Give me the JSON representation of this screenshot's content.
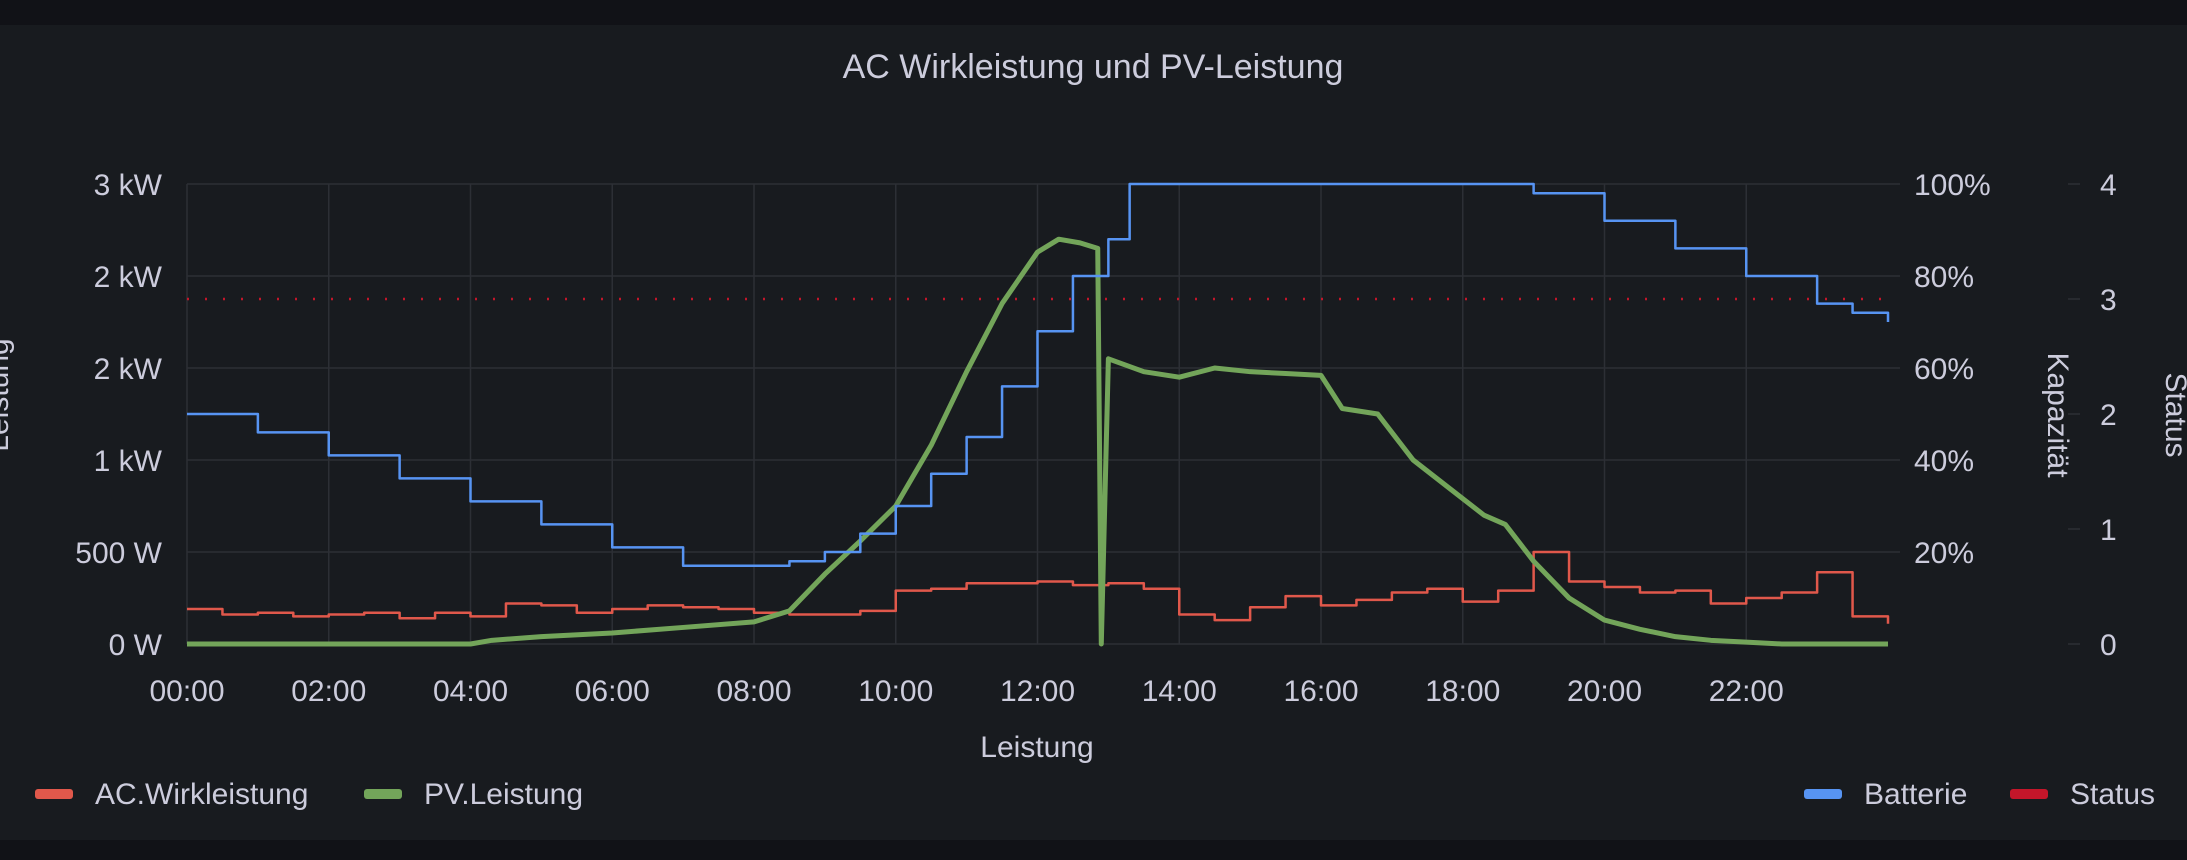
{
  "panel": {
    "title": "AC Wirkleistung und PV-Leistung"
  },
  "chart_data": {
    "type": "line",
    "title": "AC Wirkleistung und PV-Leistung",
    "xlabel": "Leistung",
    "x_ticks": [
      "00:00",
      "02:00",
      "04:00",
      "06:00",
      "08:00",
      "10:00",
      "12:00",
      "14:00",
      "16:00",
      "18:00",
      "20:00",
      "22:00"
    ],
    "xlim_hours": [
      0,
      24
    ],
    "axes": {
      "left": {
        "label": "Leistung",
        "ticks": [
          "0 W",
          "500 W",
          "1 kW",
          "2 kW",
          "2 kW",
          "3 kW"
        ],
        "range_w": [
          0,
          2500
        ]
      },
      "right_capacity": {
        "label": "Kapazität",
        "ticks": [
          "20%",
          "40%",
          "60%",
          "80%",
          "100%"
        ],
        "range_pct": [
          0,
          100
        ]
      },
      "right_status": {
        "label": "Status",
        "ticks": [
          "0",
          "1",
          "2",
          "3",
          "4"
        ],
        "range": [
          0,
          4
        ]
      }
    },
    "grid": true,
    "legend": {
      "left": [
        "AC.Wirkleistung",
        "PV.Leistung"
      ],
      "right": [
        "Batterie",
        "Status"
      ]
    },
    "colors": {
      "ac": "#e0584b",
      "pv": "#73a55a",
      "battery": "#5794f2",
      "status": "#c4162a"
    },
    "series": [
      {
        "name": "AC.Wirkleistung",
        "axis": "left",
        "x": [
          0,
          0.5,
          1,
          1.5,
          2,
          2.5,
          3,
          3.5,
          4,
          4.5,
          5,
          5.5,
          6,
          6.5,
          7,
          7.5,
          8,
          8.5,
          9,
          9.5,
          10,
          10.5,
          11,
          11.5,
          12,
          12.5,
          13,
          13.5,
          14,
          14.5,
          15,
          15.5,
          16,
          16.5,
          17,
          17.5,
          18,
          18.5,
          19,
          19.5,
          20,
          20.5,
          21,
          21.5,
          22,
          22.5,
          23,
          23.5,
          24
        ],
        "y": [
          190,
          160,
          170,
          150,
          160,
          170,
          140,
          170,
          150,
          220,
          210,
          170,
          190,
          210,
          200,
          190,
          170,
          160,
          160,
          180,
          290,
          300,
          330,
          330,
          340,
          320,
          330,
          300,
          160,
          130,
          200,
          260,
          210,
          240,
          280,
          300,
          230,
          290,
          500,
          340,
          310,
          280,
          290,
          220,
          250,
          280,
          390,
          150,
          110
        ]
      },
      {
        "name": "PV.Leistung",
        "axis": "left",
        "x": [
          0,
          1,
          2,
          3,
          4,
          4.3,
          5,
          6,
          7,
          8,
          8.5,
          9,
          9.5,
          10,
          10.5,
          11,
          11.5,
          12,
          12.3,
          12.6,
          12.85,
          12.9,
          13,
          13.5,
          14,
          14.5,
          15,
          15.5,
          16,
          16.3,
          16.8,
          17.3,
          17.8,
          18.3,
          18.6,
          19,
          19.5,
          20,
          20.5,
          21,
          21.5,
          22,
          22.5,
          23,
          24
        ],
        "y": [
          0,
          0,
          0,
          0,
          0,
          20,
          40,
          60,
          90,
          120,
          180,
          380,
          560,
          750,
          1080,
          1480,
          1850,
          2130,
          2200,
          2180,
          2150,
          0,
          1550,
          1480,
          1450,
          1500,
          1480,
          1470,
          1460,
          1280,
          1250,
          1000,
          850,
          700,
          650,
          450,
          250,
          130,
          80,
          40,
          20,
          10,
          0,
          0,
          0
        ]
      },
      {
        "name": "Batterie",
        "axis": "right_capacity",
        "x": [
          0,
          1,
          2,
          3,
          4,
          5,
          6,
          7,
          8,
          8.5,
          9,
          9.5,
          10,
          10.5,
          11,
          11.5,
          12,
          12.5,
          13,
          13.3,
          14,
          16,
          18,
          18.5,
          19,
          20,
          21,
          22,
          23,
          23.5,
          24
        ],
        "y": [
          50,
          46,
          41,
          36,
          31,
          26,
          21,
          17,
          17,
          18,
          20,
          24,
          30,
          37,
          45,
          56,
          68,
          80,
          88,
          100,
          100,
          100,
          100,
          100,
          98,
          92,
          86,
          80,
          74,
          72,
          70
        ]
      },
      {
        "name": "Status",
        "axis": "right_status",
        "x": [
          0,
          24
        ],
        "y": [
          3,
          3
        ]
      }
    ]
  }
}
